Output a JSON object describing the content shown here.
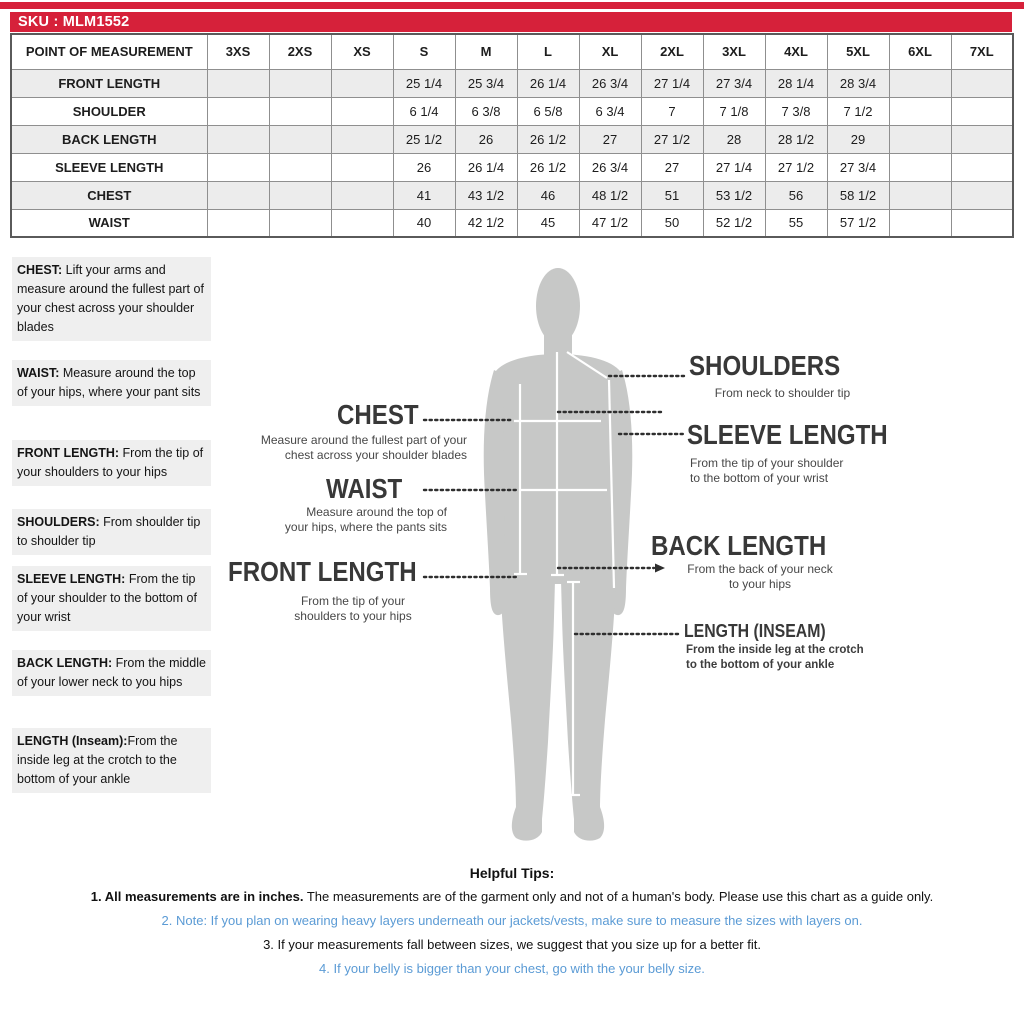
{
  "sku_bar": {
    "label": "SKU : MLM1552"
  },
  "colors": {
    "brand_red": "#d6213a",
    "tip_blue": "#5b9bd5",
    "figure_gray": "#c7c8c7",
    "block_bg": "#efefef",
    "row_stripe": "#ececec"
  },
  "size_table": {
    "header": [
      "POINT OF MEASUREMENT",
      "3XS",
      "2XS",
      "XS",
      "S",
      "M",
      "L",
      "XL",
      "2XL",
      "3XL",
      "4XL",
      "5XL",
      "6XL",
      "7XL"
    ],
    "rows": [
      {
        "label": "FRONT LENGTH",
        "values": [
          "",
          "",
          "",
          "25 1/4",
          "25 3/4",
          "26 1/4",
          "26 3/4",
          "27 1/4",
          "27 3/4",
          "28 1/4",
          "28 3/4",
          "",
          ""
        ]
      },
      {
        "label": "SHOULDER",
        "values": [
          "",
          "",
          "",
          "6 1/4",
          "6 3/8",
          "6 5/8",
          "6 3/4",
          "7",
          "7 1/8",
          "7 3/8",
          "7 1/2",
          "",
          ""
        ]
      },
      {
        "label": "BACK LENGTH",
        "values": [
          "",
          "",
          "",
          "25 1/2",
          "26",
          "26 1/2",
          "27",
          "27 1/2",
          "28",
          "28 1/2",
          "29",
          "",
          ""
        ]
      },
      {
        "label": "SLEEVE LENGTH",
        "values": [
          "",
          "",
          "",
          "26",
          "26 1/4",
          "26 1/2",
          "26 3/4",
          "27",
          "27 1/4",
          "27 1/2",
          "27 3/4",
          "",
          ""
        ]
      },
      {
        "label": "CHEST",
        "values": [
          "",
          "",
          "",
          "41",
          "43 1/2",
          "46",
          "48 1/2",
          "51",
          "53 1/2",
          "56",
          "58 1/2",
          "",
          ""
        ]
      },
      {
        "label": "WAIST",
        "values": [
          "",
          "",
          "",
          "40",
          "42 1/2",
          "45",
          "47 1/2",
          "50",
          "52 1/2",
          "55",
          "57 1/2",
          "",
          ""
        ]
      }
    ]
  },
  "definitions": [
    {
      "term": "CHEST:",
      "desc": " Lift your arms  and measure around the fullest part of your chest across your shoulder blades"
    },
    {
      "term": "WAIST:",
      "desc": " Measure around the top of your hips, where your pant sits"
    },
    {
      "term": "FRONT LENGTH:",
      "desc": " From the tip of your shoulders to your hips"
    },
    {
      "term": "SHOULDERS:",
      "desc": " From shoulder tip to shoulder tip"
    },
    {
      "term": "SLEEVE LENGTH:",
      "desc": " From the tip of your shoulder to the bottom of your wrist"
    },
    {
      "term": "BACK LENGTH:",
      "desc": " From the middle of your lower neck to you hips"
    },
    {
      "term": "LENGTH (Inseam):",
      "desc": "From the inside leg at the crotch to the bottom of your ankle"
    }
  ],
  "diagram": {
    "left_labels": {
      "chest": {
        "title": "CHEST",
        "desc": "Measure around the fullest part of your\nchest across your shoulder blades"
      },
      "waist": {
        "title": "WAIST",
        "desc": "Measure around the top of\nyour hips, where the pants sits"
      },
      "front": {
        "title": "FRONT LENGTH",
        "desc": "From the tip of your\nshoulders to your hips"
      }
    },
    "right_labels": {
      "shoulders": {
        "title": "SHOULDERS",
        "desc": "From neck to shoulder tip"
      },
      "sleeve": {
        "title": "SLEEVE LENGTH",
        "desc": "From the tip of your shoulder\nto the bottom of your wrist"
      },
      "back": {
        "title": "BACK LENGTH",
        "desc": "From the back of your neck\nto your hips"
      },
      "inseam": {
        "title": "LENGTH (INSEAM)",
        "desc": "From the inside leg at the crotch\nto the bottom of your ankle"
      }
    }
  },
  "tips": {
    "title": "Helpful Tips:",
    "items": [
      {
        "num": "1. ",
        "bold": "All measurements are in inches.",
        "rest": " The measurements are of the garment only and not of a human's body. Please use this chart as a guide only."
      },
      {
        "num": "2. ",
        "bold": "",
        "rest": "Note: If you plan on wearing heavy layers underneath our jackets/vests, make sure to measure the sizes with layers on."
      },
      {
        "num": "3. ",
        "bold": "",
        "rest": "If your measurements fall between sizes, we suggest that you size up for a better fit."
      },
      {
        "num": "4. ",
        "bold": "",
        "rest": "If your belly is bigger than your chest, go with the your belly size."
      }
    ]
  }
}
